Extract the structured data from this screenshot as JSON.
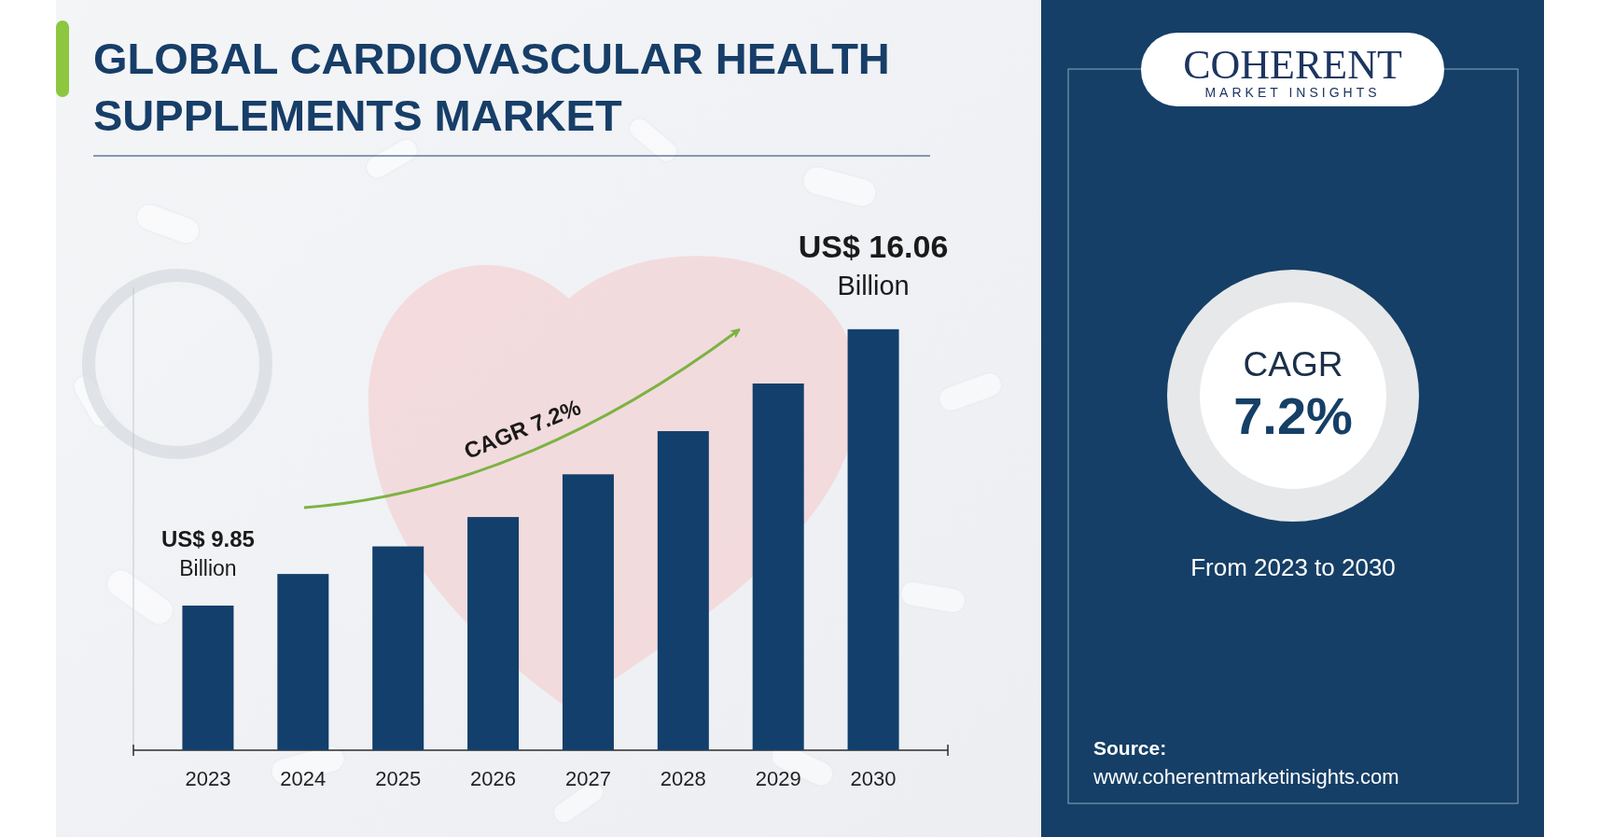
{
  "chart_data": {
    "type": "bar",
    "title": "GLOBAL CARDIOVASCULAR HEALTH SUPPLEMENTS MARKET",
    "categories": [
      "2023",
      "2024",
      "2025",
      "2026",
      "2027",
      "2028",
      "2029",
      "2030"
    ],
    "values": [
      9.85,
      10.56,
      11.18,
      11.84,
      12.8,
      13.77,
      14.84,
      16.06
    ],
    "value_labels": [
      "US$ 9.85 Billion",
      null,
      null,
      null,
      null,
      null,
      null,
      "US$ 16.06 Billion"
    ],
    "color": "#123f6b",
    "ylim": [
      6.6,
      17
    ],
    "tick_labels": "x",
    "data_labels": true,
    "annotations": {
      "arrow_label": "CAGR 7.2%",
      "cagr_caption": "CAGR",
      "cagr_value": "7.2%",
      "period": "From 2023 to 2030",
      "source_label": "Source:",
      "source_url": "www.coherentmarketinsights.com",
      "logo": "COHERENT",
      "logo_tagline": "MARKET INSIGHTS"
    }
  }
}
